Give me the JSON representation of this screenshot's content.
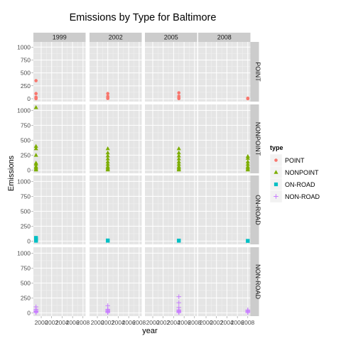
{
  "chart_data": {
    "type": "scatter",
    "title": "Emissions by Type for Baltimore",
    "xlabel": "year",
    "ylabel": "Emissions",
    "facet_columns": [
      "1999",
      "2002",
      "2005",
      "2008"
    ],
    "facet_rows": [
      "POINT",
      "NONPOINT",
      "ON-ROAD",
      "NON-ROAD"
    ],
    "x_ticks": [
      2000,
      2002,
      2004,
      2006,
      2008
    ],
    "xlim": [
      1998.5,
      2008.5
    ],
    "y_ticks": [
      0,
      250,
      500,
      750,
      1000
    ],
    "ylim": [
      -55,
      1100
    ],
    "grid": true,
    "legend": {
      "title": "type",
      "position": "right",
      "entries": [
        "POINT",
        "NONPOINT",
        "ON-ROAD",
        "NON-ROAD"
      ]
    },
    "series": [
      {
        "name": "POINT",
        "color": "#F8766D",
        "shape": "circle",
        "points": [
          {
            "col": "1999",
            "x": 1999,
            "y": [
              350,
              100,
              30,
              10,
              5,
              2
            ]
          },
          {
            "col": "2002",
            "x": 2002,
            "y": [
              100,
              45,
              20,
              10,
              5
            ]
          },
          {
            "col": "2005",
            "x": 2005,
            "y": [
              115,
              50,
              20,
              8,
              3
            ]
          },
          {
            "col": "2008",
            "x": 2008,
            "y": [
              10,
              5,
              3,
              1
            ]
          }
        ]
      },
      {
        "name": "NONPOINT",
        "color": "#7CAE00",
        "shape": "triangle",
        "points": [
          {
            "col": "1999",
            "x": 1999,
            "y": [
              1050,
              400,
              360,
              250,
              120,
              100,
              60,
              40,
              20,
              5
            ]
          },
          {
            "col": "2002",
            "x": 2002,
            "y": [
              360,
              290,
              240,
              190,
              140,
              100,
              60,
              40,
              20,
              5
            ]
          },
          {
            "col": "2005",
            "x": 2005,
            "y": [
              360,
              290,
              240,
              190,
              140,
              100,
              60,
              40,
              20,
              5
            ]
          },
          {
            "col": "2008",
            "x": 2008,
            "y": [
              230,
              200,
              140,
              100,
              60,
              40,
              20,
              5
            ]
          }
        ]
      },
      {
        "name": "ON-ROAD",
        "color": "#00BFC4",
        "shape": "square",
        "points": [
          {
            "col": "1999",
            "x": 1999,
            "y": [
              55,
              40,
              25,
              12,
              5
            ]
          },
          {
            "col": "2002",
            "x": 2002,
            "y": [
              12,
              5
            ]
          },
          {
            "col": "2005",
            "x": 2005,
            "y": [
              10,
              5
            ]
          },
          {
            "col": "2008",
            "x": 2008,
            "y": [
              5,
              2
            ]
          }
        ]
      },
      {
        "name": "NON-ROAD",
        "color": "#C77CFF",
        "shape": "plus",
        "points": [
          {
            "col": "1999",
            "x": 1999,
            "y": [
              100,
              60,
              40,
              25,
              15,
              10,
              5
            ]
          },
          {
            "col": "2002",
            "x": 2002,
            "y": [
              120,
              60,
              45,
              30,
              20,
              10,
              5
            ]
          },
          {
            "col": "2005",
            "x": 2005,
            "y": [
              270,
              170,
              90,
              50,
              40,
              25,
              15,
              10,
              5
            ]
          },
          {
            "col": "2008",
            "x": 2008,
            "y": [
              50,
              35,
              20,
              10,
              5
            ]
          }
        ]
      }
    ]
  }
}
